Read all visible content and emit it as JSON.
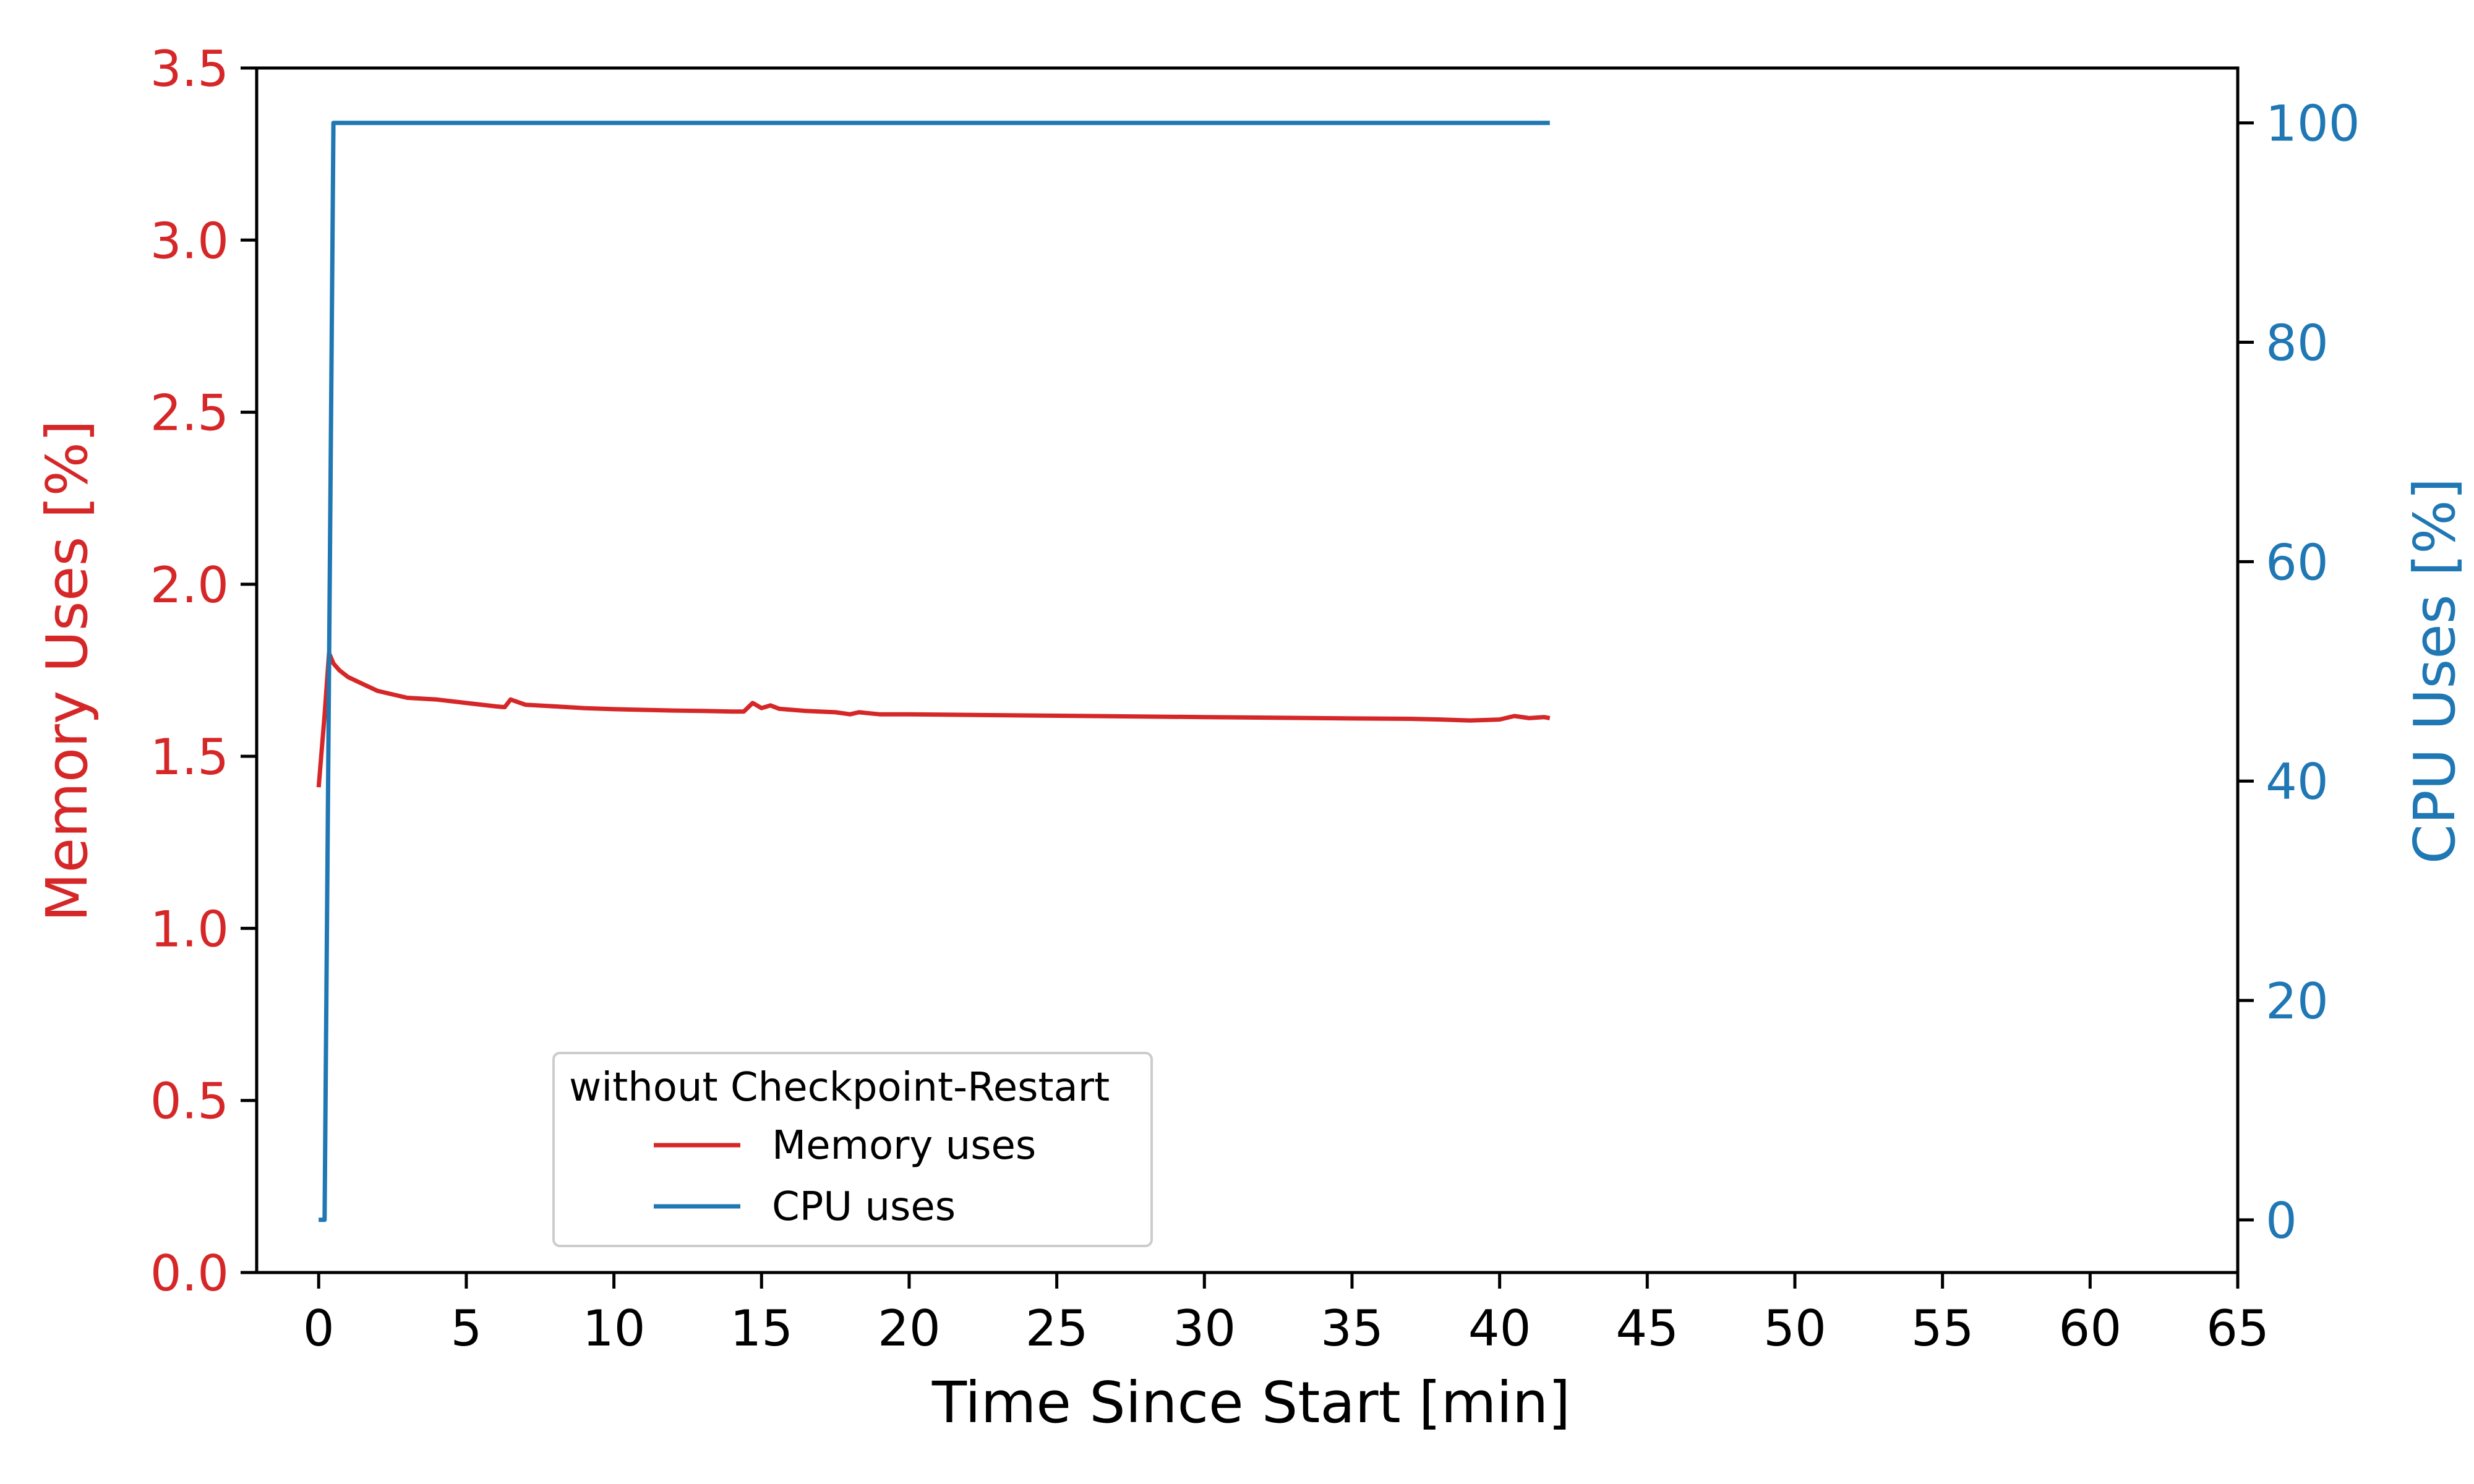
{
  "chart_data": {
    "type": "line",
    "title": "",
    "xlabel": "Time Since Start [min]",
    "ylabel_left": "Memory Uses [%]",
    "ylabel_right": "CPU Uses [%]",
    "xlim": [
      -2.1,
      65
    ],
    "ylim_left": [
      0,
      3.5
    ],
    "ylim_right": [
      -4.8,
      105
    ],
    "x_ticks": [
      "0",
      "5",
      "10",
      "15",
      "20",
      "25",
      "30",
      "35",
      "40",
      "45",
      "50",
      "55",
      "60",
      "65"
    ],
    "y_left_ticks": [
      "0.0",
      "0.5",
      "1.0",
      "1.5",
      "2.0",
      "2.5",
      "3.0",
      "3.5"
    ],
    "y_right_ticks": [
      "0",
      "20",
      "40",
      "60",
      "80",
      "100"
    ],
    "grid": false,
    "legend": {
      "title": "without Checkpoint-Restart",
      "placement": "lower-left",
      "entries": [
        "Memory uses",
        "CPU uses"
      ]
    },
    "colors": {
      "memory": "#d62728",
      "cpu": "#1f77b4",
      "axis": "#000000"
    },
    "series": [
      {
        "name": "Memory uses",
        "axis": "left",
        "x": [
          0.0,
          0.2,
          0.35,
          0.5,
          0.7,
          1.0,
          1.5,
          2.0,
          2.5,
          3.0,
          4.0,
          5.0,
          6.0,
          6.3,
          6.5,
          7.0,
          8.0,
          9.0,
          10.0,
          11.0,
          12.0,
          13.0,
          14.0,
          14.4,
          14.7,
          15.0,
          15.3,
          15.6,
          16.5,
          17.5,
          18.0,
          18.3,
          19.0,
          20.0,
          25.0,
          30.0,
          35.0,
          37.0,
          38.0,
          39.0,
          40.0,
          40.5,
          41.0,
          41.5,
          41.7
        ],
        "y": [
          1.41,
          1.62,
          1.8,
          1.77,
          1.75,
          1.73,
          1.71,
          1.69,
          1.68,
          1.67,
          1.665,
          1.655,
          1.645,
          1.643,
          1.665,
          1.65,
          1.645,
          1.64,
          1.637,
          1.635,
          1.633,
          1.632,
          1.63,
          1.63,
          1.655,
          1.64,
          1.648,
          1.638,
          1.632,
          1.628,
          1.622,
          1.628,
          1.622,
          1.622,
          1.618,
          1.614,
          1.61,
          1.609,
          1.607,
          1.604,
          1.607,
          1.617,
          1.611,
          1.614,
          1.611
        ]
      },
      {
        "name": "CPU uses",
        "axis": "right",
        "x": [
          0.0,
          0.15,
          0.2,
          0.5,
          0.55,
          41.7
        ],
        "y": [
          0,
          0,
          0,
          100,
          100,
          100
        ]
      }
    ]
  }
}
